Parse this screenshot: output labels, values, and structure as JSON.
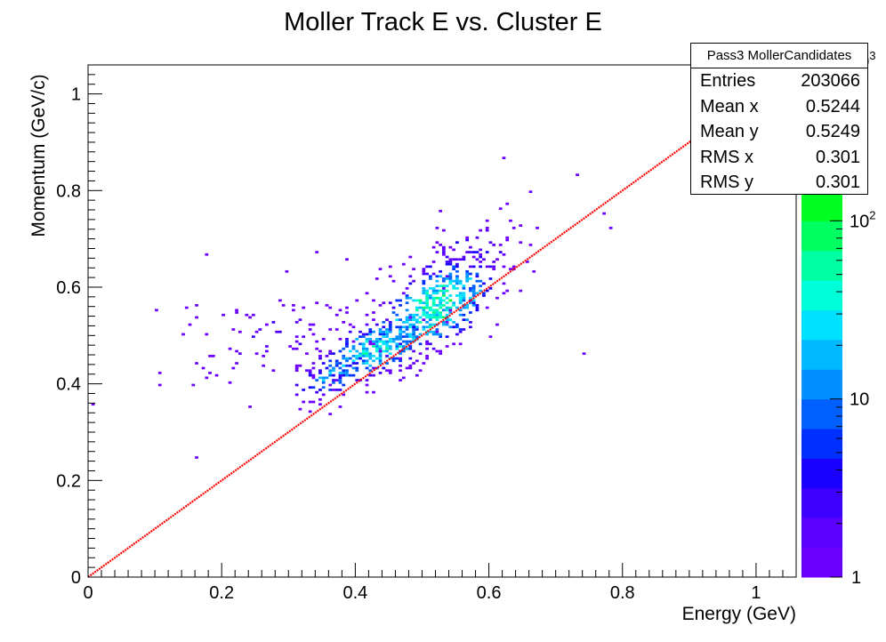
{
  "chart_data": {
    "type": "heatmap",
    "title": "Moller Track E vs. Cluster E",
    "xlabel": "Energy (GeV)",
    "ylabel": "Momentum (GeV/c)",
    "xlim": [
      0,
      1.06
    ],
    "ylim": [
      0,
      1.06
    ],
    "x_ticks": [
      "0",
      "0.2",
      "0.4",
      "0.6",
      "0.8",
      "1"
    ],
    "y_ticks": [
      "0",
      "0.2",
      "0.4",
      "0.6",
      "0.8",
      "1"
    ],
    "z_scale": "log",
    "z_ticks": [
      "1",
      "10",
      "10^2",
      "10^3"
    ],
    "reference_line": {
      "from": [
        0,
        0
      ],
      "to": [
        1.06,
        1.06
      ],
      "color": "#ff0000"
    },
    "clusters": [
      {
        "x": 0.52,
        "y": 0.56,
        "sx": 0.045,
        "sy": 0.05,
        "n": 430,
        "peak": 40
      },
      {
        "x": 0.43,
        "y": 0.47,
        "sx": 0.045,
        "sy": 0.035,
        "n": 260,
        "peak": 25
      },
      {
        "x": 0.37,
        "y": 0.42,
        "sx": 0.035,
        "sy": 0.03,
        "n": 90,
        "peak": 12
      },
      {
        "x": 0.29,
        "y": 0.5,
        "sx": 0.09,
        "sy": 0.06,
        "n": 90,
        "peak": 2
      },
      {
        "x": 0.56,
        "y": 0.66,
        "sx": 0.06,
        "sy": 0.05,
        "n": 80,
        "peak": 3
      }
    ],
    "outliers": [
      [
        0.175,
        0.668
      ],
      [
        0.155,
        0.395
      ],
      [
        0.16,
        0.245
      ],
      [
        0.62,
        0.865
      ],
      [
        0.74,
        0.462
      ],
      [
        0.77,
        0.75
      ],
      [
        0.73,
        0.83
      ],
      [
        0.78,
        0.72
      ],
      [
        0.16,
        0.56
      ],
      [
        0.15,
        0.52
      ],
      [
        0.22,
        0.47
      ],
      [
        0.34,
        0.67
      ],
      [
        0.66,
        0.795
      ]
    ],
    "statistics": {
      "title": "Pass3 MollerCandidates",
      "entries": "203066",
      "mean_x": "0.5244",
      "mean_y": "0.5249",
      "rms_x": "0.301",
      "rms_y": "0.301"
    }
  },
  "stats_box": {
    "title": "Pass3 MollerCandidates",
    "rows": [
      {
        "label": "Entries",
        "value": "203066"
      },
      {
        "label": "Mean x",
        "value": "0.5244"
      },
      {
        "label": "Mean y",
        "value": "0.5249"
      },
      {
        "label": "RMS x",
        "value": "0.301"
      },
      {
        "label": "RMS y",
        "value": "0.301"
      }
    ]
  },
  "colors": {
    "diagonal": "#ff0000",
    "palette": [
      "#6b00ff",
      "#5a00ff",
      "#3d00ff",
      "#1a00ff",
      "#0030ff",
      "#0060ff",
      "#0090ff",
      "#00b8ff",
      "#00e0ff",
      "#00ffd8",
      "#00ffa0",
      "#00ff60",
      "#00ff20",
      "#30ff00",
      "#70ff00",
      "#b0ff00",
      "#e8ff00",
      "#ffff00"
    ]
  }
}
